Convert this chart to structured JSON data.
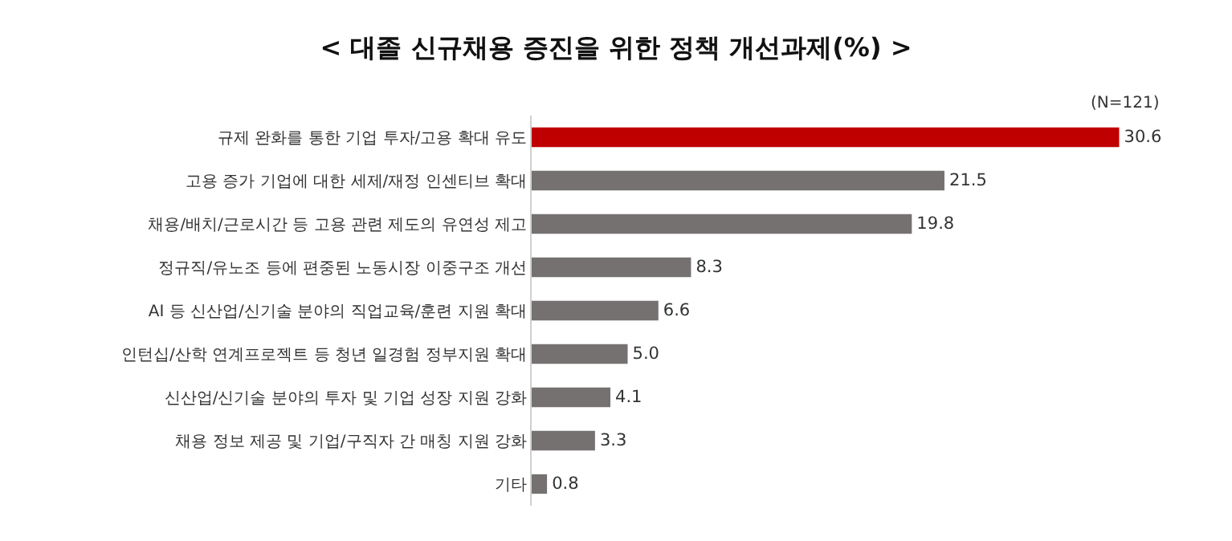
{
  "chart_data": {
    "type": "bar",
    "orientation": "horizontal",
    "title": "< 대졸 신규채용 증진을 위한 정책 개선과제(%) >",
    "categories": [
      "규제 완화를 통한 기업 투자/고용 확대 유도",
      "고용 증가 기업에 대한 세제/재정 인센티브 확대",
      "채용/배치/근로시간 등 고용 관련 제도의 유연성 제고",
      "정규직/유노조 등에 편중된 노동시장 이중구조 개선",
      "AI 등 신산업/신기술 분야의 직업교육/훈련 지원 확대",
      "인턴십/산학 연계프로젝트 등 청년 일경험 정부지원 확대",
      "신산업/신기술 분야의 투자 및 기업 성장 지원 강화",
      "채용 정보 제공 및 기업/구직자 간 매칭 지원 강화",
      "기타"
    ],
    "values": [
      30.6,
      21.5,
      19.8,
      8.3,
      6.6,
      5.0,
      4.1,
      3.3,
      0.8
    ],
    "value_labels": [
      "30.6",
      "21.5",
      "19.8",
      "8.3",
      "6.6",
      "5.0",
      "4.1",
      "3.3",
      "0.8"
    ],
    "colors": [
      "#c00000",
      "#767171",
      "#767171",
      "#767171",
      "#767171",
      "#767171",
      "#767171",
      "#767171",
      "#767171"
    ],
    "tick_labels": "y",
    "legend": false,
    "annotations": [
      "(N=121)"
    ]
  }
}
